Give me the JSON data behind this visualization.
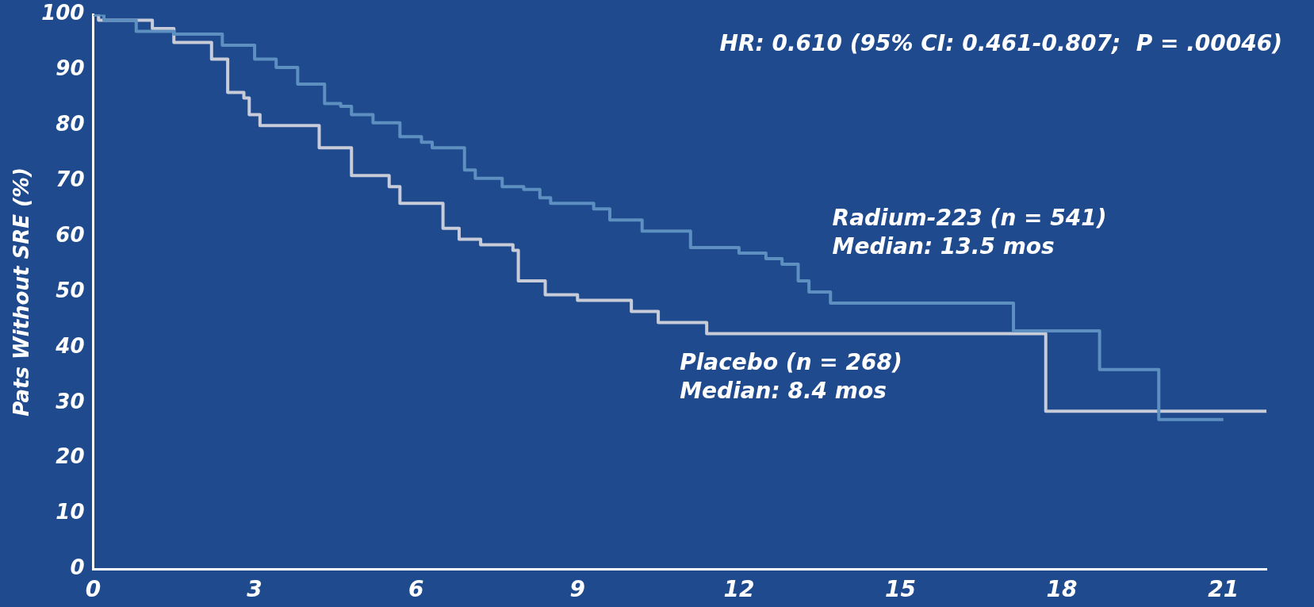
{
  "chart_data": {
    "type": "step",
    "ylabel": "Pats Without SRE (%)",
    "xlim": [
      0,
      21.8
    ],
    "xticks": [
      0,
      3,
      6,
      9,
      12,
      15,
      18,
      21
    ],
    "ylim": [
      0,
      100
    ],
    "yticks": [
      0,
      10,
      20,
      30,
      40,
      50,
      60,
      70,
      80,
      90,
      100
    ],
    "grid": false,
    "legend": false,
    "marker": "none",
    "line_style": "solid",
    "annotations": [
      "HR: 0.610 (95% CI: 0.461-0.807;  P = .00046)",
      "Median: 13.5 mos",
      "Median: 8.4 mos"
    ],
    "series": [
      {
        "name": "Radium-223 (n = 541)",
        "color": "#5d8fc0",
        "x": [
          0,
          0.2,
          0.8,
          1.5,
          2.4,
          3,
          3.4,
          3.8,
          4.3,
          4.6,
          4.8,
          5.2,
          5.7,
          6.1,
          6.3,
          6.9,
          7.1,
          7.6,
          8,
          8.3,
          8.5,
          9.3,
          9.6,
          10.2,
          11.1,
          12,
          12.5,
          12.8,
          13.1,
          13.3,
          13.7,
          17.1,
          18.7,
          19.8,
          21
        ],
        "values": [
          100,
          99,
          97,
          96.5,
          94.5,
          92,
          90.5,
          87.5,
          84,
          83.5,
          82,
          80.5,
          78,
          77,
          76,
          72,
          70.5,
          69,
          68.5,
          67,
          66,
          65,
          63,
          61,
          58,
          57,
          56,
          55,
          52,
          50,
          48,
          43,
          36,
          27,
          27
        ]
      },
      {
        "name": "Placebo (n = 268)",
        "color": "#c8ccd8",
        "x": [
          0,
          0.1,
          1.1,
          1.5,
          2.2,
          2.5,
          2.8,
          2.9,
          3.1,
          4.2,
          4.8,
          5.5,
          5.7,
          6.5,
          6.8,
          7.2,
          7.8,
          7.9,
          8.4,
          9,
          10,
          10.5,
          11.4,
          17.7,
          21.8
        ],
        "values": [
          100,
          99,
          97.5,
          95,
          92,
          86,
          85,
          82,
          80,
          76,
          71,
          69,
          66,
          61.5,
          59.5,
          58.5,
          57.5,
          52,
          49.5,
          48.5,
          46.5,
          44.5,
          42.5,
          28.5,
          28.5
        ]
      }
    ]
  }
}
